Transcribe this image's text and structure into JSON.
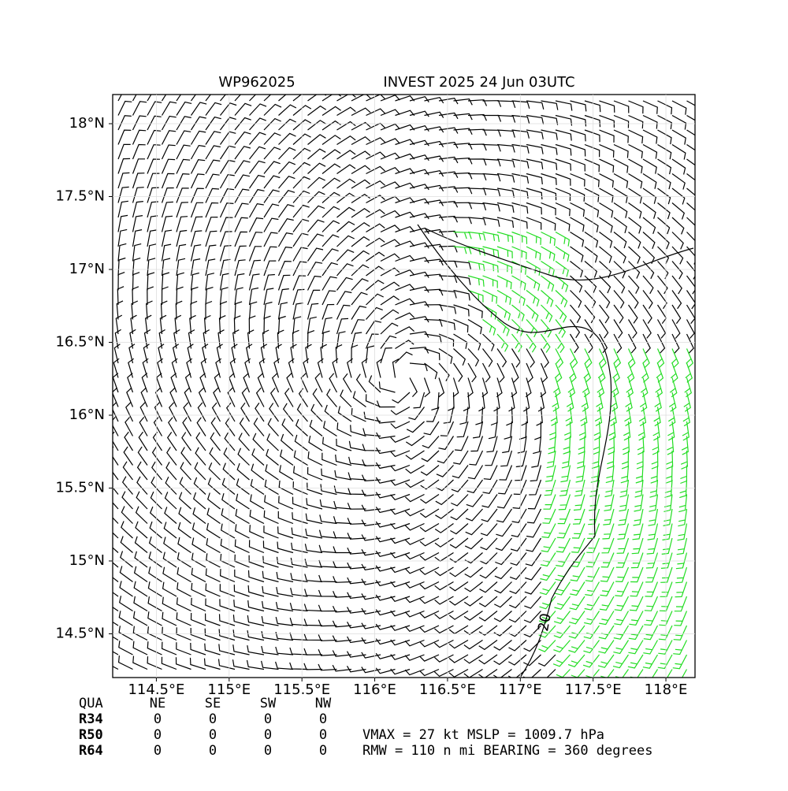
{
  "header": {
    "title_left": "WP962025",
    "title_right": "INVEST 2025 24 Jun 03UTC"
  },
  "axes": {
    "xlim": [
      114.2,
      118.2
    ],
    "ylim": [
      14.2,
      18.2
    ],
    "xticks": [
      {
        "value": 114.5,
        "label": "114.5°E"
      },
      {
        "value": 115,
        "label": "115°E"
      },
      {
        "value": 115.5,
        "label": "115.5°E"
      },
      {
        "value": 116,
        "label": "116°E"
      },
      {
        "value": 116.5,
        "label": "116.5°E"
      },
      {
        "value": 117,
        "label": "117°E"
      },
      {
        "value": 117.5,
        "label": "117.5°E"
      },
      {
        "value": 118,
        "label": "118°E"
      }
    ],
    "yticks": [
      {
        "value": 14.5,
        "label": "14.5°N"
      },
      {
        "value": 15,
        "label": "15°N"
      },
      {
        "value": 15.5,
        "label": "15.5°N"
      },
      {
        "value": 16,
        "label": "16°N"
      },
      {
        "value": 16.5,
        "label": "16.5°N"
      },
      {
        "value": 17,
        "label": "17°N"
      },
      {
        "value": 17.5,
        "label": "17.5°N"
      },
      {
        "value": 18,
        "label": "18°N"
      }
    ]
  },
  "contour_label": "20",
  "table": {
    "header": [
      "QUA",
      "NE",
      "SE",
      "SW",
      "NW"
    ],
    "rows": [
      [
        "R34",
        0,
        0,
        0,
        0
      ],
      [
        "R50",
        0,
        0,
        0,
        0
      ],
      [
        "R64",
        0,
        0,
        0,
        0
      ]
    ]
  },
  "summary": [
    "VMAX =  27 kt MSLP = 1009.7 hPa",
    "RMW = 110 n mi BEARING = 360 degrees"
  ]
}
